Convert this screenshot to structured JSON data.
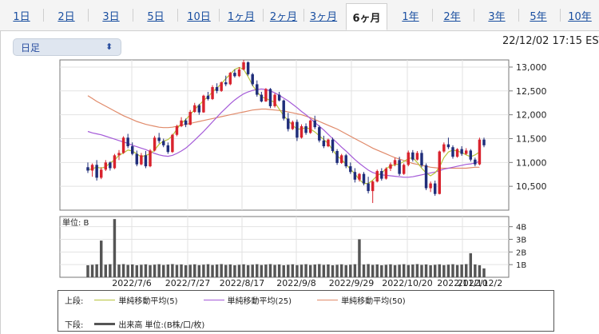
{
  "tabs": [
    {
      "label": "1日"
    },
    {
      "label": "2日"
    },
    {
      "label": "3日"
    },
    {
      "label": "5日"
    },
    {
      "label": "10日"
    },
    {
      "label": "1ヶ月"
    },
    {
      "label": "2ヶ月"
    },
    {
      "label": "3ヶ月"
    },
    {
      "label": "6ヶ月",
      "active": true
    },
    {
      "label": "1年"
    },
    {
      "label": "2年"
    },
    {
      "label": "3年"
    },
    {
      "label": "5年"
    },
    {
      "label": "10年"
    }
  ],
  "period_select": {
    "value": "日足"
  },
  "timestamp": "22/12/02 17:15 EST",
  "legend": {
    "upper_label": "上段:",
    "lower_label": "下段:",
    "items": [
      {
        "label": "単純移動平均(5)",
        "color": "#b8c43c"
      },
      {
        "label": "単純移動平均(25)",
        "color": "#a45ad8"
      },
      {
        "label": "単純移動平均(50)",
        "color": "#e08a6a"
      }
    ],
    "volume_item": {
      "label": "出来高 単位:(B株/口/枚)",
      "color": "#555555"
    }
  },
  "chart_data": [
    {
      "type": "candlestick",
      "up_color": "#d9232e",
      "down_color": "#1f2d7a",
      "y_ticks": [
        10500,
        11000,
        11500,
        12000,
        12500,
        13000
      ],
      "ylim": [
        10000,
        13150
      ],
      "x_labels": [
        "2022/7/6",
        "2022/7/27",
        "2022/8/17",
        "2022/9/8",
        "2022/9/29",
        "2022/10/20",
        "2022/11/10",
        "2022/12/2"
      ],
      "ohlc": [
        [
          10900,
          11000,
          10780,
          10830
        ],
        [
          10830,
          10980,
          10700,
          10950
        ],
        [
          10950,
          11050,
          10620,
          10680
        ],
        [
          10680,
          10900,
          10650,
          10850
        ],
        [
          10850,
          11050,
          10820,
          11000
        ],
        [
          11000,
          11020,
          10830,
          10880
        ],
        [
          10880,
          11180,
          10860,
          11150
        ],
        [
          11150,
          11260,
          11050,
          11200
        ],
        [
          11200,
          11550,
          11180,
          11520
        ],
        [
          11520,
          11600,
          11300,
          11340
        ],
        [
          11340,
          11420,
          11150,
          11180
        ],
        [
          11180,
          11250,
          10920,
          10960
        ],
        [
          10960,
          11200,
          10940,
          11150
        ],
        [
          11150,
          11240,
          10880,
          10920
        ],
        [
          10920,
          11280,
          10900,
          11250
        ],
        [
          11250,
          11560,
          11230,
          11520
        ],
        [
          11520,
          11620,
          11400,
          11450
        ],
        [
          11450,
          11500,
          11320,
          11360
        ],
        [
          11360,
          11420,
          11180,
          11220
        ],
        [
          11220,
          11600,
          11200,
          11580
        ],
        [
          11580,
          11790,
          11550,
          11760
        ],
        [
          11760,
          11950,
          11740,
          11880
        ],
        [
          11880,
          11920,
          11740,
          11790
        ],
        [
          11790,
          12100,
          11780,
          12060
        ],
        [
          12060,
          12250,
          12040,
          12200
        ],
        [
          12200,
          12230,
          12000,
          12050
        ],
        [
          12050,
          12420,
          12040,
          12400
        ],
        [
          12400,
          12480,
          12300,
          12330
        ],
        [
          12330,
          12620,
          12310,
          12580
        ],
        [
          12580,
          12660,
          12450,
          12500
        ],
        [
          12500,
          12700,
          12480,
          12680
        ],
        [
          12680,
          12820,
          12600,
          12640
        ],
        [
          12640,
          12900,
          12620,
          12880
        ],
        [
          12880,
          12950,
          12780,
          12810
        ],
        [
          12810,
          13000,
          12790,
          12950
        ],
        [
          12950,
          13150,
          12930,
          13100
        ],
        [
          13100,
          13120,
          12820,
          12850
        ],
        [
          12850,
          12880,
          12600,
          12640
        ],
        [
          12640,
          12720,
          12380,
          12420
        ],
        [
          12420,
          12480,
          12260,
          12280
        ],
        [
          12280,
          12560,
          12270,
          12540
        ],
        [
          12540,
          12560,
          12140,
          12180
        ],
        [
          12180,
          12450,
          12150,
          12420
        ],
        [
          12420,
          12480,
          12280,
          12300
        ],
        [
          12300,
          12320,
          11880,
          11920
        ],
        [
          11920,
          12040,
          11650,
          11700
        ],
        [
          11700,
          11880,
          11680,
          11850
        ],
        [
          11850,
          11900,
          11450,
          11520
        ],
        [
          11520,
          11800,
          11500,
          11760
        ],
        [
          11760,
          11820,
          11580,
          11620
        ],
        [
          11620,
          11900,
          11600,
          11880
        ],
        [
          11880,
          11980,
          11700,
          11740
        ],
        [
          11740,
          11780,
          11420,
          11460
        ],
        [
          11460,
          11560,
          11300,
          11340
        ],
        [
          11340,
          11500,
          11320,
          11480
        ],
        [
          11480,
          11520,
          11200,
          11240
        ],
        [
          11240,
          11280,
          10950,
          10990
        ],
        [
          10990,
          11180,
          10970,
          11150
        ],
        [
          11150,
          11180,
          10880,
          10920
        ],
        [
          10920,
          11000,
          10760,
          10800
        ],
        [
          10800,
          10880,
          10580,
          10640
        ],
        [
          10640,
          10780,
          10600,
          10760
        ],
        [
          10760,
          10800,
          10520,
          10560
        ],
        [
          10560,
          10700,
          10350,
          10400
        ],
        [
          10400,
          10620,
          10150,
          10600
        ],
        [
          10600,
          10850,
          10580,
          10820
        ],
        [
          10820,
          10880,
          10620,
          10660
        ],
        [
          10660,
          10900,
          10640,
          10870
        ],
        [
          10870,
          11000,
          10820,
          10960
        ],
        [
          10960,
          11100,
          10920,
          11050
        ],
        [
          11050,
          11120,
          10720,
          10760
        ],
        [
          10760,
          10980,
          10740,
          10950
        ],
        [
          10950,
          11250,
          10920,
          11210
        ],
        [
          11210,
          11260,
          11020,
          11060
        ],
        [
          11060,
          11240,
          11040,
          11200
        ],
        [
          11200,
          11260,
          10900,
          10940
        ],
        [
          10940,
          10980,
          10420,
          10460
        ],
        [
          10460,
          10600,
          10380,
          10560
        ],
        [
          10560,
          10620,
          10300,
          10340
        ],
        [
          10340,
          11250,
          10330,
          11230
        ],
        [
          11230,
          11420,
          11200,
          11380
        ],
        [
          11380,
          11520,
          11280,
          11320
        ],
        [
          11320,
          11360,
          11080,
          11120
        ],
        [
          11120,
          11300,
          11100,
          11280
        ],
        [
          11280,
          11340,
          11140,
          11180
        ],
        [
          11180,
          11300,
          11160,
          11250
        ],
        [
          11250,
          11280,
          11020,
          11060
        ],
        [
          11060,
          11100,
          10920,
          10960
        ],
        [
          10960,
          11520,
          10940,
          11480
        ],
        [
          11480,
          11520,
          11320,
          11360
        ]
      ],
      "sma5": [
        10840,
        10870,
        10900,
        10880,
        10910,
        10990,
        11050,
        11150,
        11200,
        11260,
        11240,
        11180,
        11120,
        11150,
        11180,
        11260,
        11380,
        11450,
        11480,
        11560,
        11700,
        11820,
        11900,
        12000,
        12120,
        12200,
        12300,
        12380,
        12480,
        12560,
        12650,
        12760,
        12850,
        12950,
        12990,
        12950,
        12800,
        12620,
        12480,
        12380,
        12340,
        12300,
        12260,
        12120,
        11980,
        11880,
        11780,
        11700,
        11700,
        11730,
        11700,
        11640,
        11560,
        11480,
        11400,
        11260,
        11140,
        11060,
        10960,
        10860,
        10760,
        10640,
        10560,
        10560,
        10630,
        10720,
        10780,
        10870,
        10930,
        10950,
        10970,
        11020,
        11080,
        11100,
        11000,
        10880,
        10780,
        10720,
        10780,
        10900,
        11100,
        11220,
        11260,
        11240,
        11210,
        11160,
        11120,
        11160,
        11220
      ],
      "sma25": [
        11650,
        11620,
        11600,
        11580,
        11550,
        11520,
        11490,
        11460,
        11430,
        11400,
        11360,
        11330,
        11300,
        11270,
        11230,
        11190,
        11160,
        11140,
        11130,
        11150,
        11190,
        11240,
        11300,
        11380,
        11470,
        11560,
        11650,
        11750,
        11850,
        11950,
        12050,
        12140,
        12230,
        12310,
        12380,
        12440,
        12480,
        12510,
        12530,
        12540,
        12530,
        12500,
        12460,
        12410,
        12350,
        12290,
        12220,
        12150,
        12070,
        12000,
        11920,
        11840,
        11760,
        11680,
        11590,
        11500,
        11410,
        11320,
        11240,
        11150,
        11060,
        10980,
        10910,
        10840,
        10790,
        10760,
        10740,
        10730,
        10720,
        10710,
        10700,
        10690,
        10690,
        10700,
        10720,
        10740,
        10760,
        10780,
        10800,
        10830,
        10860,
        10880,
        10900,
        10920,
        10940,
        10960,
        10970,
        10990,
        11020
      ],
      "sma50": [
        12400,
        12340,
        12280,
        12230,
        12180,
        12130,
        12080,
        12030,
        11980,
        11940,
        11900,
        11860,
        11830,
        11800,
        11780,
        11760,
        11740,
        11730,
        11730,
        11740,
        11760,
        11780,
        11800,
        11820,
        11840,
        11860,
        11880,
        11900,
        11920,
        11940,
        11960,
        11980,
        12000,
        12020,
        12040,
        12060,
        12080,
        12100,
        12110,
        12120,
        12120,
        12110,
        12100,
        12090,
        12080,
        12060,
        12040,
        12020,
        12000,
        11970,
        11940,
        11900,
        11860,
        11820,
        11780,
        11740,
        11700,
        11650,
        11600,
        11550,
        11500,
        11450,
        11400,
        11350,
        11300,
        11260,
        11220,
        11180,
        11140,
        11100,
        11070,
        11040,
        11010,
        10980,
        10960,
        10940,
        10920,
        10900,
        10890,
        10880,
        10880,
        10880,
        10880,
        10880,
        10880,
        10880,
        10890,
        10900,
        10900
      ],
      "vol_events": {
        "3": 2.9,
        "6": 4.6,
        "61": 3.0,
        "86": 1.9
      },
      "vol_base": 0.95
    },
    {
      "type": "bar",
      "unit_label": "単位: B",
      "y_ticks": [
        {
          "v": 1,
          "label": "1B"
        },
        {
          "v": 2,
          "label": "2B"
        },
        {
          "v": 3,
          "label": "3B"
        },
        {
          "v": 4,
          "label": "4B"
        }
      ],
      "ylim": [
        0,
        4.8
      ]
    }
  ]
}
